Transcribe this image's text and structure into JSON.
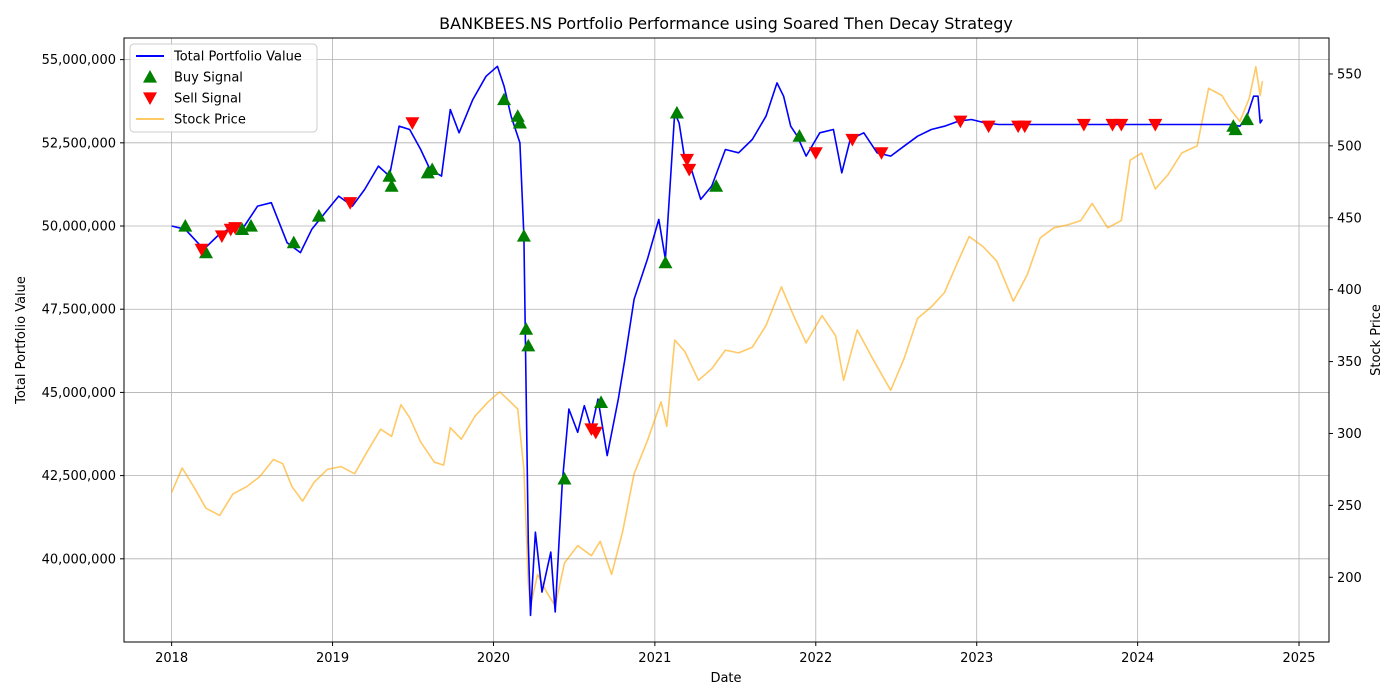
{
  "chart_data": {
    "type": "line",
    "title": "BANKBEES.NS Portfolio Performance using Soared Then Decay Strategy",
    "xlabel": "Date",
    "ylabel": "Total Portfolio Value",
    "y2label": "Stock Price",
    "xlim": [
      "2017-09-15",
      "2025-03-10"
    ],
    "ylim": [
      37500000,
      55650000
    ],
    "y2lim": [
      155,
      575
    ],
    "x_ticks": [
      "2018",
      "2019",
      "2020",
      "2021",
      "2022",
      "2023",
      "2024",
      "2025"
    ],
    "y_ticks": [
      40000000,
      42500000,
      45000000,
      47500000,
      50000000,
      52500000,
      55000000
    ],
    "y_tick_labels": [
      "40,000,000",
      "42,500,000",
      "45,000,000",
      "47,500,000",
      "50,000,000",
      "52,500,000",
      "55,000,000"
    ],
    "y2_ticks": [
      200,
      250,
      300,
      350,
      400,
      450,
      500,
      550
    ],
    "y2_tick_labels": [
      "200",
      "250",
      "300",
      "350",
      "400",
      "450",
      "500",
      "550"
    ],
    "grid": true,
    "legend_position": "top-left",
    "colors": {
      "portfolio": "#0000ff",
      "buy": "#008000",
      "sell": "#ff0000",
      "stock": "#ffa500"
    },
    "series": [
      {
        "name": "Total Portfolio Value",
        "axis": "left",
        "points": [
          [
            "2018-01-01",
            50000000
          ],
          [
            "2018-02-01",
            49900000
          ],
          [
            "2018-03-15",
            49300000
          ],
          [
            "2018-04-15",
            49700000
          ],
          [
            "2018-05-15",
            49950000
          ],
          [
            "2018-06-15",
            50000000
          ],
          [
            "2018-07-15",
            50600000
          ],
          [
            "2018-08-15",
            50700000
          ],
          [
            "2018-09-20",
            49500000
          ],
          [
            "2018-10-20",
            49200000
          ],
          [
            "2018-11-15",
            49900000
          ],
          [
            "2018-12-15",
            50400000
          ],
          [
            "2019-01-15",
            50900000
          ],
          [
            "2019-02-15",
            50600000
          ],
          [
            "2019-03-15",
            51100000
          ],
          [
            "2019-04-15",
            51800000
          ],
          [
            "2019-05-10",
            51500000
          ],
          [
            "2019-06-01",
            53000000
          ],
          [
            "2019-06-25",
            52900000
          ],
          [
            "2019-07-20",
            52300000
          ],
          [
            "2019-08-10",
            51700000
          ],
          [
            "2019-09-05",
            51500000
          ],
          [
            "2019-09-25",
            53500000
          ],
          [
            "2019-10-15",
            52800000
          ],
          [
            "2019-11-15",
            53800000
          ],
          [
            "2019-12-15",
            54500000
          ],
          [
            "2020-01-10",
            54800000
          ],
          [
            "2020-01-25",
            54200000
          ],
          [
            "2020-02-10",
            53300000
          ],
          [
            "2020-03-01",
            52500000
          ],
          [
            "2020-03-10",
            49700000
          ],
          [
            "2020-03-20",
            40500000
          ],
          [
            "2020-03-25",
            38300000
          ],
          [
            "2020-04-05",
            40800000
          ],
          [
            "2020-04-20",
            39000000
          ],
          [
            "2020-05-10",
            40200000
          ],
          [
            "2020-05-20",
            38400000
          ],
          [
            "2020-06-05",
            42300000
          ],
          [
            "2020-06-20",
            44500000
          ],
          [
            "2020-07-10",
            43800000
          ],
          [
            "2020-07-25",
            44600000
          ],
          [
            "2020-08-10",
            43900000
          ],
          [
            "2020-08-25",
            44800000
          ],
          [
            "2020-09-15",
            43100000
          ],
          [
            "2020-10-10",
            44800000
          ],
          [
            "2020-10-25",
            46000000
          ],
          [
            "2020-11-15",
            47800000
          ],
          [
            "2020-12-15",
            49000000
          ],
          [
            "2021-01-10",
            50200000
          ],
          [
            "2021-01-25",
            49000000
          ],
          [
            "2021-02-15",
            53400000
          ],
          [
            "2021-02-25",
            53100000
          ],
          [
            "2021-03-10",
            52000000
          ],
          [
            "2021-03-25",
            51700000
          ],
          [
            "2021-04-15",
            50800000
          ],
          [
            "2021-05-10",
            51200000
          ],
          [
            "2021-06-10",
            52300000
          ],
          [
            "2021-07-10",
            52200000
          ],
          [
            "2021-08-10",
            52600000
          ],
          [
            "2021-09-10",
            53300000
          ],
          [
            "2021-10-05",
            54300000
          ],
          [
            "2021-10-20",
            53900000
          ],
          [
            "2021-11-05",
            53000000
          ],
          [
            "2021-11-20",
            52700000
          ],
          [
            "2021-12-10",
            52100000
          ],
          [
            "2022-01-10",
            52800000
          ],
          [
            "2022-02-10",
            52900000
          ],
          [
            "2022-03-01",
            51600000
          ],
          [
            "2022-03-20",
            52600000
          ],
          [
            "2022-04-20",
            52800000
          ],
          [
            "2022-05-20",
            52200000
          ],
          [
            "2022-06-20",
            52100000
          ],
          [
            "2022-07-20",
            52400000
          ],
          [
            "2022-08-20",
            52700000
          ],
          [
            "2022-09-20",
            52900000
          ],
          [
            "2022-10-20",
            53000000
          ],
          [
            "2022-11-20",
            53150000
          ],
          [
            "2022-12-20",
            53200000
          ],
          [
            "2023-01-20",
            53100000
          ],
          [
            "2023-02-20",
            53050000
          ],
          [
            "2023-04-15",
            53050000
          ],
          [
            "2023-08-30",
            53050000
          ],
          [
            "2023-11-15",
            53050000
          ],
          [
            "2024-02-15",
            53050000
          ],
          [
            "2024-08-01",
            53050000
          ],
          [
            "2024-08-20",
            53000000
          ],
          [
            "2024-09-05",
            53300000
          ],
          [
            "2024-09-20",
            53900000
          ],
          [
            "2024-09-30",
            53900000
          ],
          [
            "2024-10-05",
            53100000
          ],
          [
            "2024-10-10",
            53200000
          ]
        ]
      },
      {
        "name": "Stock Price",
        "axis": "right",
        "points": [
          [
            "2018-01-01",
            259
          ],
          [
            "2018-01-25",
            276
          ],
          [
            "2018-02-20",
            263
          ],
          [
            "2018-03-20",
            248
          ],
          [
            "2018-04-20",
            243
          ],
          [
            "2018-05-20",
            258
          ],
          [
            "2018-06-20",
            263
          ],
          [
            "2018-07-20",
            270
          ],
          [
            "2018-08-20",
            282
          ],
          [
            "2018-09-10",
            279
          ],
          [
            "2018-10-01",
            263
          ],
          [
            "2018-10-25",
            253
          ],
          [
            "2018-11-20",
            266
          ],
          [
            "2018-12-20",
            275
          ],
          [
            "2019-01-20",
            277
          ],
          [
            "2019-02-20",
            272
          ],
          [
            "2019-03-20",
            287
          ],
          [
            "2019-04-20",
            303
          ],
          [
            "2019-05-15",
            298
          ],
          [
            "2019-06-05",
            320
          ],
          [
            "2019-06-25",
            311
          ],
          [
            "2019-07-20",
            294
          ],
          [
            "2019-08-20",
            280
          ],
          [
            "2019-09-10",
            278
          ],
          [
            "2019-09-25",
            304
          ],
          [
            "2019-10-20",
            296
          ],
          [
            "2019-11-20",
            312
          ],
          [
            "2019-12-20",
            322
          ],
          [
            "2020-01-15",
            329
          ],
          [
            "2020-02-05",
            323
          ],
          [
            "2020-02-25",
            317
          ],
          [
            "2020-03-10",
            275
          ],
          [
            "2020-03-20",
            196
          ],
          [
            "2020-03-25",
            180
          ],
          [
            "2020-04-10",
            202
          ],
          [
            "2020-04-30",
            190
          ],
          [
            "2020-05-20",
            180
          ],
          [
            "2020-06-10",
            210
          ],
          [
            "2020-07-10",
            222
          ],
          [
            "2020-08-10",
            215
          ],
          [
            "2020-08-30",
            225
          ],
          [
            "2020-09-25",
            202
          ],
          [
            "2020-10-20",
            232
          ],
          [
            "2020-11-15",
            272
          ],
          [
            "2020-12-15",
            295
          ],
          [
            "2021-01-15",
            322
          ],
          [
            "2021-01-28",
            305
          ],
          [
            "2021-02-15",
            365
          ],
          [
            "2021-03-10",
            357
          ],
          [
            "2021-04-10",
            337
          ],
          [
            "2021-05-10",
            345
          ],
          [
            "2021-06-10",
            358
          ],
          [
            "2021-07-10",
            356
          ],
          [
            "2021-08-10",
            360
          ],
          [
            "2021-09-10",
            375
          ],
          [
            "2021-10-15",
            402
          ],
          [
            "2021-11-10",
            383
          ],
          [
            "2021-12-10",
            363
          ],
          [
            "2022-01-15",
            382
          ],
          [
            "2022-02-15",
            368
          ],
          [
            "2022-03-05",
            337
          ],
          [
            "2022-04-05",
            372
          ],
          [
            "2022-05-10",
            352
          ],
          [
            "2022-06-20",
            330
          ],
          [
            "2022-07-20",
            352
          ],
          [
            "2022-08-20",
            380
          ],
          [
            "2022-09-20",
            388
          ],
          [
            "2022-10-20",
            398
          ],
          [
            "2022-11-20",
            420
          ],
          [
            "2022-12-15",
            437
          ],
          [
            "2023-01-15",
            430
          ],
          [
            "2023-02-15",
            420
          ],
          [
            "2023-03-25",
            392
          ],
          [
            "2023-04-25",
            410
          ],
          [
            "2023-05-25",
            436
          ],
          [
            "2023-06-25",
            443
          ],
          [
            "2023-07-25",
            445
          ],
          [
            "2023-08-25",
            448
          ],
          [
            "2023-09-20",
            460
          ],
          [
            "2023-10-25",
            443
          ],
          [
            "2023-11-25",
            448
          ],
          [
            "2023-12-15",
            490
          ],
          [
            "2024-01-10",
            495
          ],
          [
            "2024-02-10",
            470
          ],
          [
            "2024-03-10",
            480
          ],
          [
            "2024-04-10",
            495
          ],
          [
            "2024-05-15",
            500
          ],
          [
            "2024-06-10",
            540
          ],
          [
            "2024-07-10",
            535
          ],
          [
            "2024-07-30",
            525
          ],
          [
            "2024-08-20",
            517
          ],
          [
            "2024-09-10",
            533
          ],
          [
            "2024-09-25",
            555
          ],
          [
            "2024-10-05",
            535
          ],
          [
            "2024-10-10",
            545
          ]
        ]
      }
    ],
    "buy_signals": [
      [
        "2018-02-01",
        50000000
      ],
      [
        "2018-03-20",
        49200000
      ],
      [
        "2018-06-10",
        49900000
      ],
      [
        "2018-06-30",
        50000000
      ],
      [
        "2018-10-05",
        49500000
      ],
      [
        "2018-12-01",
        50300000
      ],
      [
        "2019-05-10",
        51500000
      ],
      [
        "2019-05-15",
        51200000
      ],
      [
        "2019-08-05",
        51600000
      ],
      [
        "2019-08-15",
        51700000
      ],
      [
        "2020-01-25",
        53800000
      ],
      [
        "2020-02-25",
        53300000
      ],
      [
        "2020-03-01",
        53100000
      ],
      [
        "2020-03-10",
        49700000
      ],
      [
        "2020-03-15",
        46900000
      ],
      [
        "2020-03-20",
        46400000
      ],
      [
        "2020-06-10",
        42400000
      ],
      [
        "2020-09-01",
        44700000
      ],
      [
        "2021-01-25",
        48900000
      ],
      [
        "2021-02-20",
        53400000
      ],
      [
        "2021-05-20",
        51200000
      ],
      [
        "2021-11-25",
        52700000
      ],
      [
        "2024-08-05",
        53000000
      ],
      [
        "2024-08-10",
        52900000
      ],
      [
        "2024-09-05",
        53200000
      ]
    ],
    "sell_signals": [
      [
        "2018-03-10",
        49300000
      ],
      [
        "2018-04-25",
        49700000
      ],
      [
        "2018-05-15",
        49900000
      ],
      [
        "2018-05-25",
        49950000
      ],
      [
        "2019-02-10",
        50700000
      ],
      [
        "2019-07-01",
        53100000
      ],
      [
        "2020-08-10",
        43900000
      ],
      [
        "2020-08-20",
        43800000
      ],
      [
        "2021-03-15",
        52000000
      ],
      [
        "2021-03-20",
        51700000
      ],
      [
        "2022-01-01",
        52200000
      ],
      [
        "2022-03-25",
        52600000
      ],
      [
        "2022-05-30",
        52200000
      ],
      [
        "2022-11-25",
        53150000
      ],
      [
        "2023-01-28",
        53000000
      ],
      [
        "2023-04-05",
        53000000
      ],
      [
        "2023-04-20",
        53000000
      ],
      [
        "2023-09-01",
        53050000
      ],
      [
        "2023-11-05",
        53050000
      ],
      [
        "2023-11-25",
        53050000
      ],
      [
        "2024-02-10",
        53050000
      ]
    ],
    "legend": [
      {
        "label": "Total Portfolio Value",
        "kind": "line",
        "color": "#0000ff"
      },
      {
        "label": "Buy Signal",
        "kind": "marker-up",
        "color": "#008000"
      },
      {
        "label": "Sell Signal",
        "kind": "marker-down",
        "color": "#ff0000"
      },
      {
        "label": "Stock Price",
        "kind": "line",
        "color": "#ffa500"
      }
    ]
  }
}
